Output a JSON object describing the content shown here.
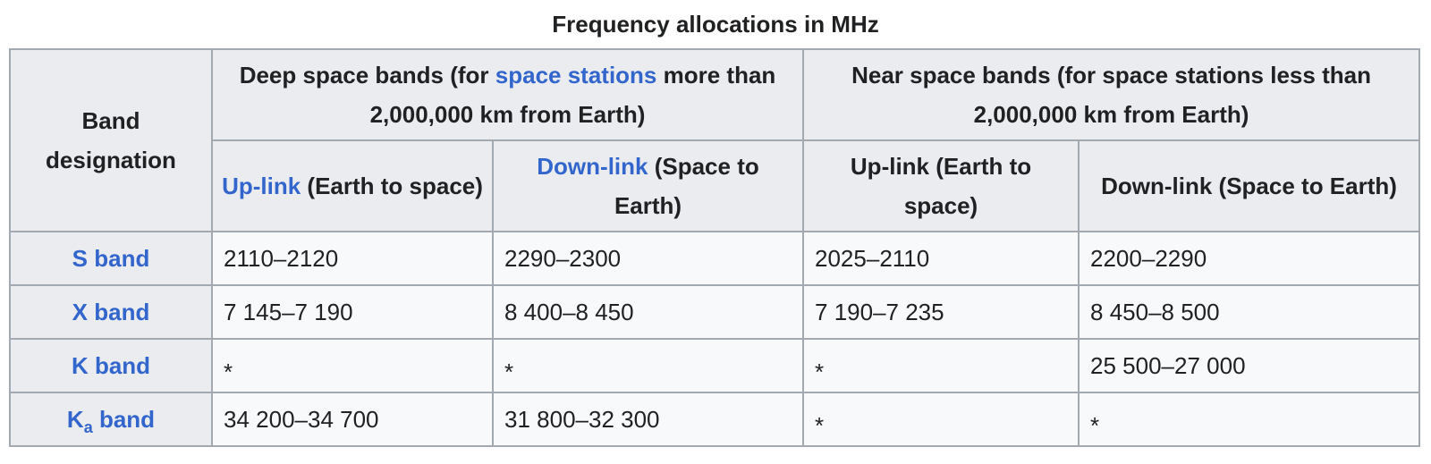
{
  "caption": "Frequency allocations in MHz",
  "header": {
    "band_designation": "Band designation",
    "deep_space": {
      "prefix": "Deep space bands (for ",
      "link": "space stations",
      "suffix": " more than 2,000,000 km from Earth)"
    },
    "near_space": "Near space bands (for space stations less than 2,000,000 km from Earth)",
    "deep_uplink": {
      "link": "Up-link",
      "suffix": " (Earth to space)"
    },
    "deep_downlink": {
      "link": "Down-link",
      "suffix": " (Space to Earth)"
    },
    "near_uplink": "Up-link (Earth to space)",
    "near_downlink": "Down-link (Space to Earth)"
  },
  "rows": [
    {
      "band": "S band",
      "deep_up": "2110–2120",
      "deep_down": "2290–2300",
      "near_up": "2025–2110",
      "near_down": "2200–2290"
    },
    {
      "band": "X band",
      "deep_up": "7 145–7 190",
      "deep_down": "8 400–8 450",
      "near_up": "7 190–7 235",
      "near_down": "8 450–8 500"
    },
    {
      "band": "K band",
      "deep_up": "*",
      "deep_down": "*",
      "near_up": "*",
      "near_down": "25 500–27 000"
    },
    {
      "band_main": "K",
      "band_sub": "a",
      "band_rest": " band",
      "deep_up": "34 200–34 700",
      "deep_down": "31 800–32 300",
      "near_up": "*",
      "near_down": "*"
    }
  ],
  "colors": {
    "link": "#3366cc",
    "header_bg": "#eaecf0",
    "cell_bg": "#f8f9fa",
    "border": "#a2a9b1",
    "text": "#202122"
  }
}
